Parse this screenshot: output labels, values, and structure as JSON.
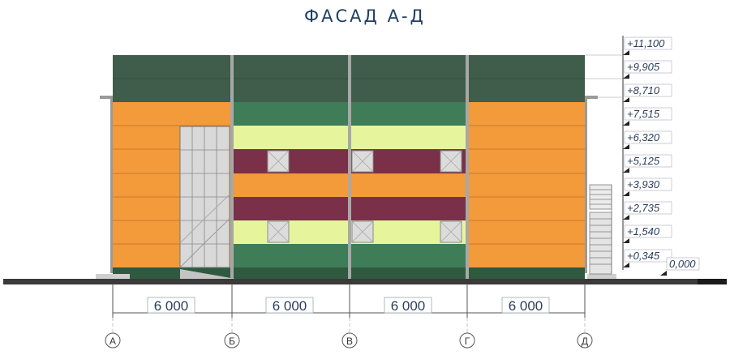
{
  "title": "ФАСАД  А-Д",
  "elevation_marks": [
    "+11,100",
    "+9,905",
    "+8,710",
    "+7,515",
    "+6,320",
    "+5,125",
    "+3,930",
    "+2,735",
    "+1,540",
    "+0,345",
    "0,000"
  ],
  "spans": [
    "6 000",
    "6 000",
    "6 000",
    "6 000"
  ],
  "axes": [
    "А",
    "Б",
    "В",
    "Г",
    "Д"
  ],
  "colors": {
    "roof_band": "#3f5d4a",
    "green_panel": "#3e7d58",
    "orange_panel": "#f39a3a",
    "lime_panel": "#e6f59b",
    "maroon_panel": "#7a3048",
    "title": "#1f3f66",
    "dimension_text": "#2b3e5c"
  }
}
